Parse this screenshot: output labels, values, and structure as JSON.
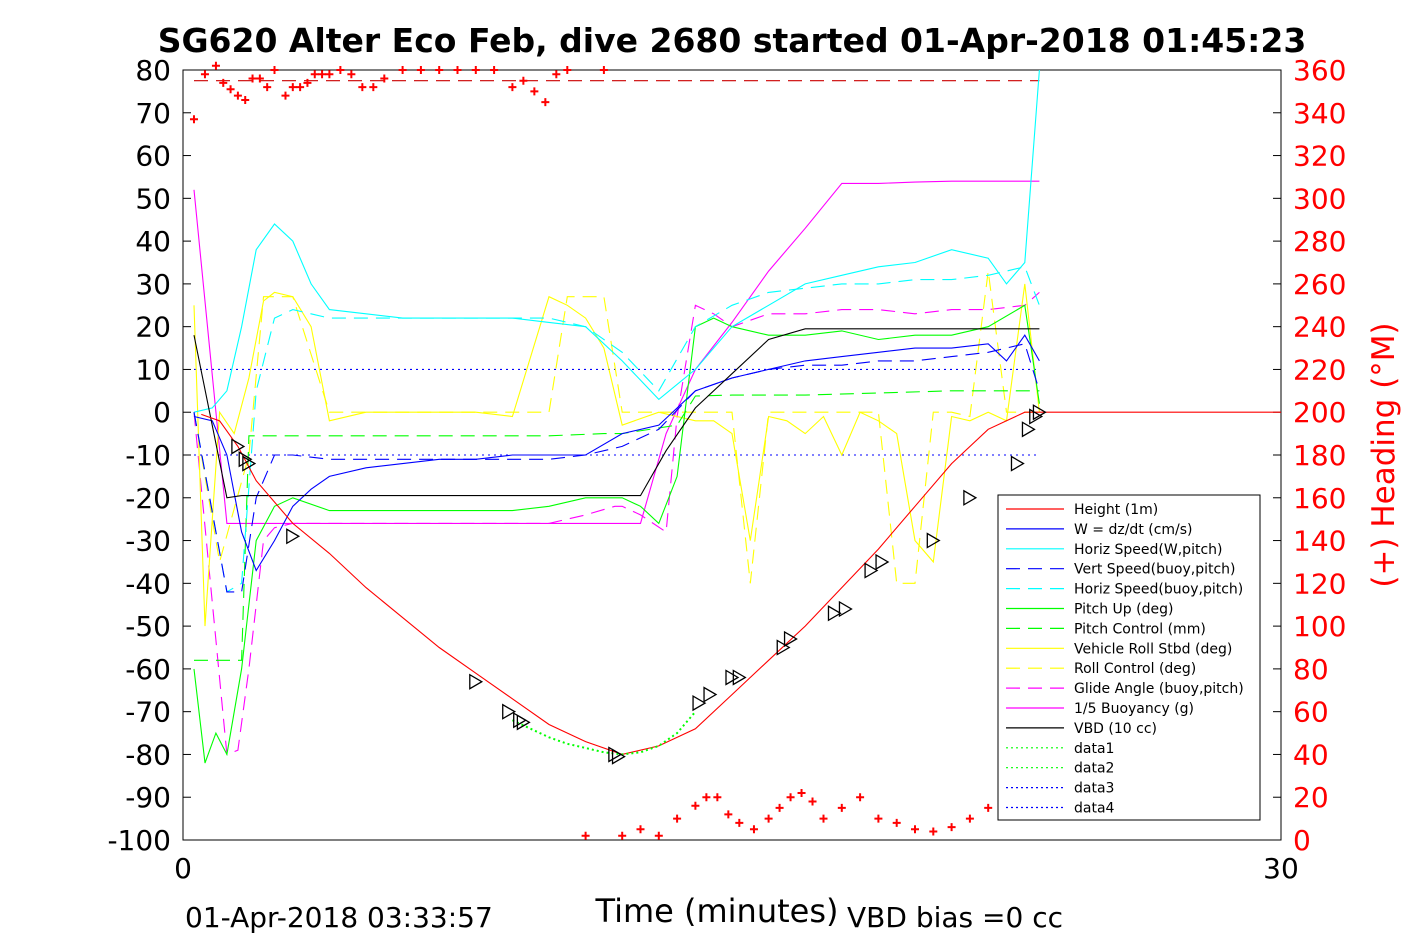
{
  "title": "SG620 Alter Eco Feb, dive 2680 started 01-Apr-2018 01:45:23",
  "footer_left": "01-Apr-2018 03:33:57",
  "footer_right": "VBD bias =0 cc",
  "colors": {
    "height": "#ff0000",
    "w": "#0000ff",
    "hspeed_w": "#00ffff",
    "vspeed_buoy": "#0000ff",
    "hspeed_buoy": "#00ffff",
    "pitch": "#00ff00",
    "pitch_ctrl": "#00ff00",
    "roll": "#ffff00",
    "roll_ctrl": "#ffff00",
    "glide": "#ff00ff",
    "buoy": "#ff00ff",
    "vbd": "#000000",
    "heading": "#ff0000",
    "dotted": "#00ff00",
    "dotted_blue": "#0000ff",
    "marker": "#000000"
  },
  "chart_data": {
    "type": "line",
    "xlabel": "Time (minutes)",
    "ylabel_right": "(+) Heading (°M)",
    "xlim": [
      0,
      30
    ],
    "ylim": [
      -100,
      80
    ],
    "ylim_right": [
      0,
      360
    ],
    "x_ticks": [
      "0",
      "30"
    ],
    "y_ticks": [
      "80",
      "70",
      "60",
      "50",
      "40",
      "30",
      "20",
      "10",
      "0",
      "-10",
      "-20",
      "-30",
      "-40",
      "-50",
      "-60",
      "-70",
      "-80",
      "-90",
      "-100"
    ],
    "y_ticks_right": [
      "360",
      "340",
      "320",
      "300",
      "280",
      "260",
      "240",
      "220",
      "200",
      "180",
      "160",
      "140",
      "120",
      "100",
      "80",
      "60",
      "40",
      "20",
      "0"
    ],
    "legend_position": "lower-right",
    "legend": [
      {
        "label": "Height (1m)",
        "style": "solid",
        "color": "#ff0000"
      },
      {
        "label": "W = dz/dt (cm/s)",
        "style": "solid",
        "color": "#0000ff"
      },
      {
        "label": "Horiz Speed(W,pitch)",
        "style": "solid",
        "color": "#00ffff"
      },
      {
        "label": "Vert Speed(buoy,pitch)",
        "style": "dashed",
        "color": "#0000ff"
      },
      {
        "label": "Horiz Speed(buoy,pitch)",
        "style": "dashed",
        "color": "#00ffff"
      },
      {
        "label": "Pitch Up (deg)",
        "style": "solid",
        "color": "#00ff00"
      },
      {
        "label": "Pitch Control (mm)",
        "style": "dashed",
        "color": "#00ff00"
      },
      {
        "label": "Vehicle Roll Stbd (deg)",
        "style": "solid",
        "color": "#ffff00"
      },
      {
        "label": "Roll Control (deg)",
        "style": "dashed",
        "color": "#ffff00"
      },
      {
        "label": "Glide Angle (buoy,pitch)",
        "style": "dashed",
        "color": "#ff00ff"
      },
      {
        "label": "1/5 Buoyancy (g)",
        "style": "solid",
        "color": "#ff00ff"
      },
      {
        "label": "VBD (10 cc)",
        "style": "solid",
        "color": "#000000"
      },
      {
        "label": "data1",
        "style": "dotted",
        "color": "#00ff00"
      },
      {
        "label": "data2",
        "style": "dotted",
        "color": "#00ff00"
      },
      {
        "label": "data3",
        "style": "dotted",
        "color": "#0000ff"
      },
      {
        "label": "data4",
        "style": "dotted",
        "color": "#0000ff"
      }
    ],
    "series": {
      "height": {
        "x": [
          0.5,
          1,
          1.5,
          2,
          3,
          4,
          5,
          6,
          7,
          8,
          9,
          10,
          11,
          12,
          13,
          14,
          15,
          16,
          17,
          18,
          19,
          20,
          21,
          22,
          23,
          24,
          25,
          26,
          27,
          28,
          29,
          30
        ],
        "y": [
          -0.5,
          -2,
          -8,
          -16,
          -26,
          -33,
          -41,
          -48,
          -55,
          -61,
          -67,
          -73,
          -77,
          -80,
          -78,
          -74,
          -66,
          -58,
          -50,
          -41,
          -32,
          -22,
          -12,
          -4,
          0,
          0,
          0,
          0,
          0,
          0,
          0,
          0
        ]
      },
      "w": {
        "x": [
          0.3,
          0.8,
          1.2,
          1.6,
          2.0,
          2.5,
          3,
          3.5,
          4,
          5,
          6,
          7,
          8,
          9,
          10,
          11,
          12,
          13,
          14,
          15,
          16,
          17,
          18,
          19,
          20,
          21,
          22,
          22.5,
          23,
          23.4
        ],
        "y": [
          -1,
          -2,
          -10,
          -28,
          -37,
          -30,
          -22,
          -18,
          -15,
          -13,
          -12,
          -11,
          -11,
          -10,
          -10,
          -10,
          -5,
          -3,
          5,
          8,
          10,
          12,
          13,
          14,
          15,
          15,
          16,
          12,
          18,
          12
        ]
      },
      "hspeed_w": {
        "x": [
          0.3,
          0.8,
          1.2,
          1.6,
          2.0,
          2.5,
          3,
          3.5,
          4,
          5,
          6,
          7,
          8,
          9,
          10,
          11,
          12,
          13,
          14,
          15,
          16,
          17,
          18,
          19,
          20,
          21,
          22,
          22.5,
          23,
          23.4
        ],
        "y": [
          0,
          1,
          5,
          20,
          38,
          44,
          40,
          30,
          24,
          23,
          22,
          22,
          22,
          22,
          21,
          20,
          12,
          3,
          10,
          20,
          25,
          30,
          32,
          34,
          35,
          38,
          36,
          30,
          35,
          80
        ]
      },
      "vspeed_buoy": {
        "x": [
          0.3,
          1.2,
          1.6,
          2.0,
          2.5,
          3,
          4,
          5,
          6,
          7,
          8,
          9,
          10,
          11,
          12,
          13,
          14,
          15,
          16,
          17,
          18,
          19,
          20,
          21,
          22,
          23,
          23.4
        ],
        "y": [
          0,
          -42,
          -42,
          -20,
          -10,
          -10,
          -11,
          -11,
          -11,
          -11,
          -11,
          -11,
          -11,
          -10,
          -8,
          -4,
          5,
          8,
          10,
          11,
          11,
          12,
          12,
          13,
          14,
          16,
          5
        ]
      },
      "hspeed_buoy": {
        "x": [
          0.3,
          1.2,
          1.6,
          2.0,
          2.5,
          3,
          4,
          5,
          6,
          7,
          8,
          9,
          10,
          11,
          12,
          13,
          14,
          15,
          16,
          17,
          18,
          19,
          20,
          21,
          22,
          23,
          23.4
        ],
        "y": [
          0,
          -42,
          -40,
          5,
          22,
          24,
          22,
          22,
          22,
          22,
          22,
          22,
          22,
          20,
          14,
          5,
          20,
          25,
          28,
          29,
          30,
          30,
          31,
          31,
          32,
          34,
          25
        ]
      },
      "pitch": {
        "x": [
          0.3,
          0.6,
          0.9,
          1.2,
          1.6,
          2.0,
          2.5,
          3,
          4,
          5,
          6,
          7,
          8,
          9,
          10,
          11,
          11.5,
          12,
          12.5,
          13,
          13.5,
          14,
          14.5,
          15,
          16,
          17,
          18,
          19,
          20,
          21,
          22,
          23,
          23.4
        ],
        "y": [
          -60,
          -82,
          -75,
          -80,
          -60,
          -30,
          -22,
          -20,
          -23,
          -23,
          -23,
          -23,
          -23,
          -23,
          -22,
          -20,
          -20,
          -20,
          -22,
          -26,
          -15,
          20,
          22,
          20,
          18,
          18,
          19,
          17,
          18,
          18,
          20,
          25,
          2
        ]
      },
      "pitch_ctrl": {
        "x": [
          0.3,
          1.6,
          1.8,
          2.0,
          4,
          6,
          8,
          10,
          11.5,
          12,
          13.5,
          14,
          15,
          17,
          19,
          21,
          23,
          23.4
        ],
        "y": [
          -58,
          -58,
          -5.5,
          -5.5,
          -5.5,
          -5.5,
          -5.5,
          -5.5,
          -5,
          -5,
          -3,
          3.8,
          4,
          4,
          4.5,
          5,
          5,
          5
        ]
      },
      "roll": {
        "x": [
          0.3,
          0.6,
          1.0,
          1.4,
          1.8,
          2.2,
          2.5,
          3,
          3.5,
          4,
          5,
          6,
          7,
          8,
          9,
          10,
          10.5,
          11,
          11.5,
          12,
          13,
          14,
          14.5,
          15,
          15.5,
          16,
          16.5,
          17,
          17.5,
          18,
          18.5,
          19,
          19.5,
          20,
          20.5,
          21,
          21.5,
          22,
          22.5,
          23,
          23.4
        ],
        "y": [
          25,
          -50,
          0,
          -5,
          8,
          26,
          28,
          27,
          20,
          -2,
          0,
          0,
          0,
          0,
          -1,
          27,
          25,
          22,
          15,
          -3,
          0,
          -2,
          -2,
          -5,
          -30,
          -1,
          -2,
          -5,
          -1,
          -10,
          0,
          -2,
          -5,
          -30,
          -35,
          -1,
          -2,
          0,
          -2,
          30,
          0
        ]
      },
      "roll_ctrl": {
        "x": [
          0.3,
          1.0,
          1.8,
          2.2,
          3,
          4,
          6,
          8,
          10,
          10.5,
          11,
          11.5,
          12,
          14,
          14.5,
          15,
          15.5,
          16,
          16.5,
          17,
          19,
          19.5,
          20,
          20.5,
          21,
          21.5,
          22,
          22.5,
          23,
          23.4
        ],
        "y": [
          0,
          -35,
          -10,
          27,
          27,
          0,
          0,
          0,
          0,
          27,
          27,
          27,
          0,
          0,
          0,
          0,
          -40,
          0,
          0,
          0,
          0,
          -40,
          -40,
          0,
          0,
          -1,
          33,
          0,
          0,
          0
        ]
      },
      "glide": {
        "x": [
          0.3,
          1.2,
          1.5,
          1.8,
          2.2,
          2.5,
          3,
          4,
          6,
          8,
          10,
          11,
          11.8,
          12,
          12.5,
          13.2,
          13.5,
          14,
          14.5,
          15,
          16,
          17,
          18,
          19,
          20,
          21,
          22,
          23,
          23.4
        ],
        "y": [
          0,
          -80,
          -79,
          -60,
          -30,
          -27,
          -26,
          -26,
          -26,
          -26,
          -26,
          -24,
          -22,
          -22,
          -24,
          -28,
          -1,
          25,
          23,
          20,
          23,
          23,
          24,
          24,
          23,
          24,
          24,
          25,
          28
        ]
      },
      "buoy": {
        "x": [
          0.3,
          1.2,
          1.6,
          11.5,
          12.5,
          13.2,
          14,
          15,
          16,
          17,
          18,
          19,
          20,
          21,
          22,
          23,
          23.4
        ],
        "y": [
          52,
          -26,
          -26,
          -26,
          -26,
          -5,
          10,
          21,
          33,
          43,
          53.5,
          53.5,
          53.8,
          54,
          54,
          54,
          54
        ]
      },
      "vbd": {
        "x": [
          0.3,
          1.2,
          1.6,
          11.5,
          12.5,
          13.2,
          14,
          15,
          16,
          17,
          18,
          19,
          20,
          21,
          22,
          23,
          23.4
        ],
        "y": [
          18,
          -20,
          -19.5,
          -19.5,
          -19.5,
          -9,
          1,
          9,
          17,
          19.5,
          19.5,
          19.5,
          19.5,
          19.5,
          19.5,
          19.5,
          19.5
        ]
      },
      "dotted_low": {
        "x": [
          9.0,
          9.5,
          10,
          10.5,
          11,
          11.5,
          12,
          12.5,
          13,
          13.5,
          14
        ],
        "y": [
          -72,
          -74,
          -76,
          -77.5,
          -78.5,
          -79.5,
          -80,
          -79.5,
          -78,
          -75,
          -70
        ]
      },
      "ref_top": {
        "x": [
          0.3,
          23.4
        ],
        "y": [
          10,
          10
        ]
      },
      "ref_bottom": {
        "x": [
          0.3,
          23.4
        ],
        "y": [
          -10,
          -10
        ]
      },
      "heading_ref": {
        "x": [
          0.3,
          23.4
        ],
        "y": [
          355,
          355
        ]
      }
    },
    "markers": {
      "x": [
        1.5,
        1.7,
        1.8,
        3,
        8,
        8.9,
        9.2,
        9.3,
        11.8,
        11.9,
        14.1,
        14.4,
        15,
        15.2,
        16.4,
        16.6,
        17.8,
        18.1,
        18.8,
        19.1,
        20.5,
        21.5,
        22.8,
        23.1,
        23.3,
        23.4
      ],
      "y": [
        -8,
        -11,
        -12,
        -29,
        -63,
        -70,
        -72,
        -72.5,
        -80,
        -80.5,
        -68,
        -66,
        -62,
        -62,
        -55,
        -53,
        -47,
        -46,
        -37,
        -35,
        -30,
        -20,
        -12,
        -4,
        -1,
        0
      ]
    },
    "heading_points": {
      "x": [
        0.3,
        0.6,
        0.9,
        1.1,
        1.3,
        1.5,
        1.7,
        1.9,
        2.1,
        2.3,
        2.5,
        2.8,
        3.0,
        3.2,
        3.4,
        3.6,
        3.8,
        4.0,
        4.3,
        4.6,
        4.9,
        5.2,
        5.5,
        6.0,
        6.5,
        7.0,
        7.5,
        8.0,
        8.5,
        9.0,
        9.3,
        9.6,
        9.9,
        10.2,
        10.5,
        11.0,
        11.5,
        12.0,
        12.5,
        13.0,
        13.5,
        14.0,
        14.3,
        14.6,
        14.9,
        15.2,
        15.6,
        16.0,
        16.3,
        16.6,
        16.9,
        17.2,
        17.5,
        18.0,
        18.5,
        19.0,
        19.5,
        20.0,
        20.5,
        21.0,
        21.5,
        22.0,
        22.5,
        22.8,
        23.0,
        23.2,
        23.4
      ],
      "y": [
        337,
        358,
        362,
        354,
        351,
        348,
        346,
        356,
        356,
        352,
        360,
        348,
        352,
        352,
        354,
        358,
        358,
        358,
        360,
        358,
        352,
        352,
        356,
        360,
        360,
        360,
        360,
        360,
        360,
        352,
        355,
        350,
        345,
        358,
        360,
        2,
        360,
        2,
        5,
        2,
        10,
        16,
        20,
        20,
        12,
        8,
        5,
        10,
        15,
        20,
        22,
        18,
        10,
        15,
        20,
        10,
        8,
        5,
        4,
        6,
        10,
        15,
        20,
        15,
        12,
        20,
        18
      ]
    }
  }
}
